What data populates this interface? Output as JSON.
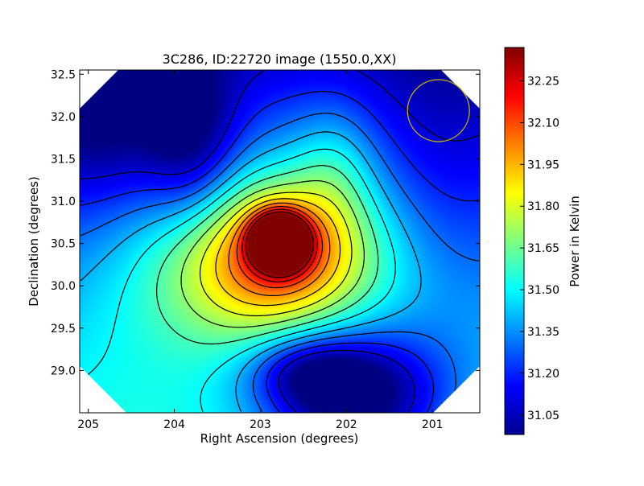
{
  "chart_data": {
    "type": "heatmap",
    "title": "3C286, ID:22720 image (1550.0,XX)",
    "xlabel": "Right Ascension (degrees)",
    "ylabel": "Declination (degrees)",
    "xlim": [
      205.1,
      200.45
    ],
    "ylim": [
      28.5,
      32.55
    ],
    "x_ticks": [
      "205",
      "204",
      "203",
      "202",
      "201"
    ],
    "y_ticks": [
      "29.0",
      "29.5",
      "30.0",
      "30.5",
      "31.0",
      "31.5",
      "32.0",
      "32.5"
    ],
    "colormap": "jet",
    "colorbar": {
      "label": "Power in Kelvin",
      "range": [
        30.98,
        32.37
      ],
      "ticks": [
        "32.25",
        "32.10",
        "31.95",
        "31.80",
        "31.65",
        "31.50",
        "31.35",
        "31.20",
        "31.05"
      ]
    },
    "peak": {
      "ra": 202.77,
      "dec": 30.47,
      "value": 32.35
    },
    "low_region": {
      "ra": 201.8,
      "dec": 28.8,
      "value": 31.0
    },
    "beam_circle": {
      "ra": 200.93,
      "dec": 32.07,
      "radius_deg": 0.36,
      "color": "#c8b400"
    },
    "grid": false,
    "legend": "none"
  }
}
